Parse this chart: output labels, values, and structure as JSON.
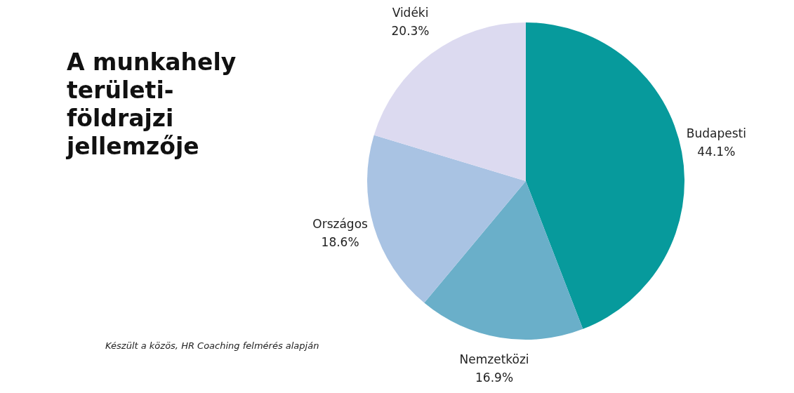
{
  "chart_data": {
    "type": "pie",
    "title": "A munkahely területi-földrajzi jellemzője",
    "categories": [
      "Budapesti",
      "Nemzetközi",
      "Országos",
      "Vidéki"
    ],
    "values": [
      44.1,
      16.9,
      18.6,
      20.3
    ],
    "value_labels": [
      "44.1%",
      "16.9%",
      "18.6%",
      "20.3%"
    ],
    "colors": [
      "#079a9c",
      "#6aafc9",
      "#a9c3e3",
      "#dcdaf0"
    ],
    "annotations": [
      "Készült a közös, HR Coaching felmérés alapján"
    ]
  }
}
